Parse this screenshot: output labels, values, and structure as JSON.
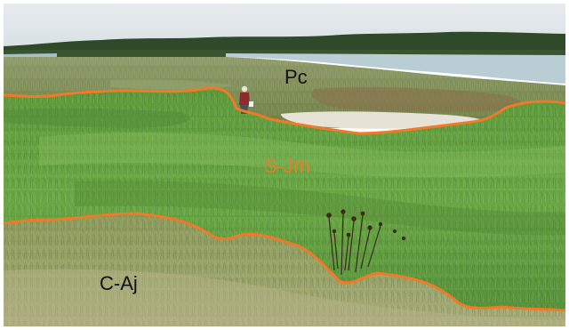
{
  "labels": {
    "upper_zone": "Pc",
    "middle_zone": "S-Jm",
    "lower_zone": "C-Aj"
  },
  "colors": {
    "boundary_line": "#f07a28",
    "middle_label": "#f07a28",
    "dark_label": "#111111",
    "sky": "#dfe6ea",
    "water": "#b9cdd4",
    "treeline": "#2f4a2a"
  }
}
